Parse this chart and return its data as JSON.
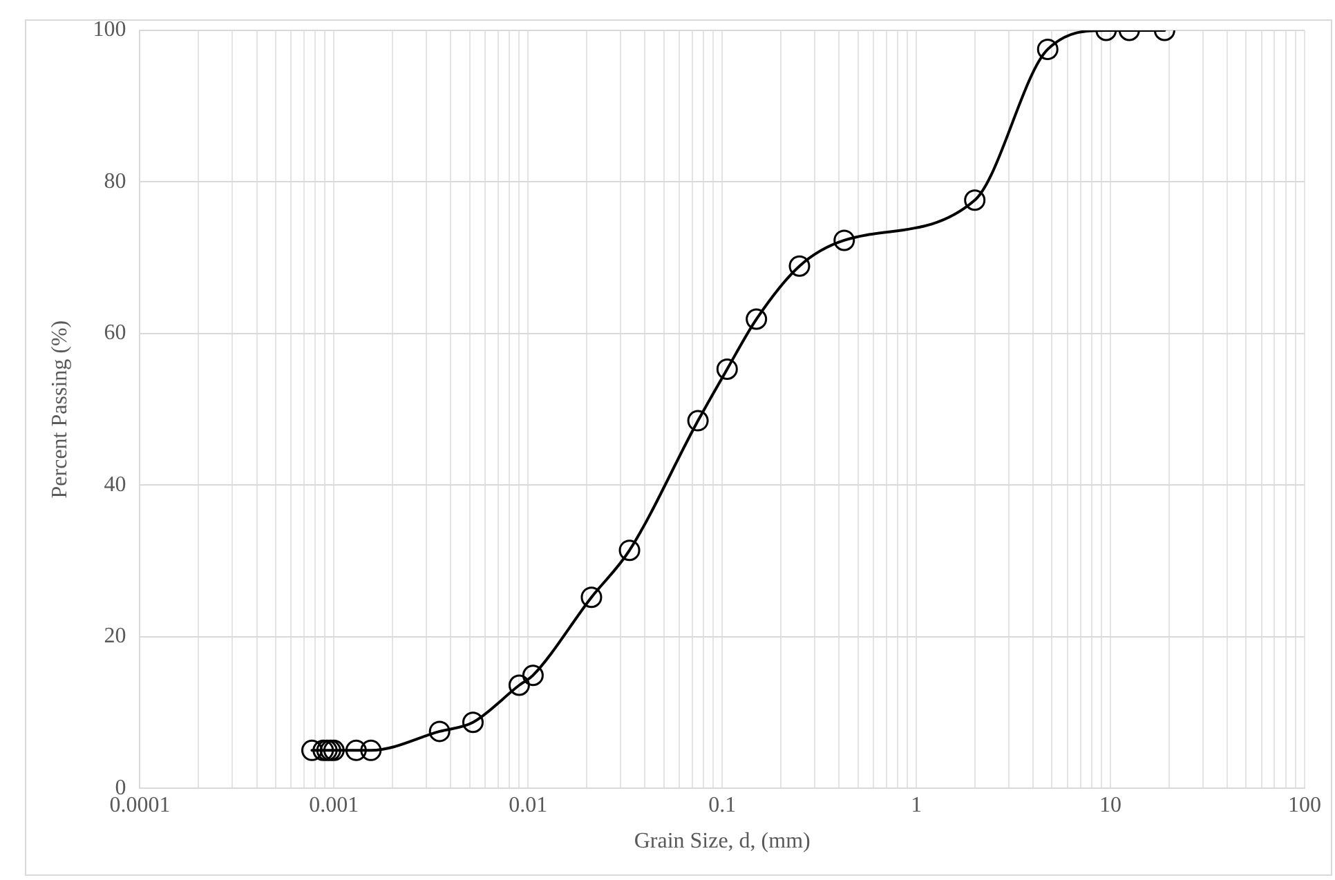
{
  "chart_data": {
    "type": "line",
    "xlabel": "Grain Size, d, (mm)",
    "ylabel": "Percent Passing (%)",
    "log": "x",
    "grid": true,
    "marker": "circle",
    "line_style": "solid",
    "legend": false,
    "xlim": [
      0.0001,
      100
    ],
    "ylim": [
      0,
      100
    ],
    "yticks": [
      0,
      20,
      40,
      60,
      80,
      100
    ],
    "xticks": [
      0.0001,
      {
        "value": 0.0002,
        "label": null
      },
      {
        "value": 0.0003,
        "label": null
      },
      {
        "value": 0.0004,
        "label": null
      },
      {
        "value": 0.0005,
        "label": null
      },
      {
        "value": 0.0006,
        "label": null
      },
      {
        "value": 0.0007,
        "label": null
      },
      {
        "value": 0.0008,
        "label": null
      },
      {
        "value": 0.0009,
        "label": null
      },
      0.001,
      {
        "value": 0.002,
        "label": null
      },
      {
        "value": 0.003,
        "label": null
      },
      {
        "value": 0.004,
        "label": null
      },
      {
        "value": 0.005,
        "label": null
      },
      {
        "value": 0.006,
        "label": null
      },
      {
        "value": 0.007,
        "label": null
      },
      {
        "value": 0.008,
        "label": null
      },
      {
        "value": 0.009,
        "label": null
      },
      0.01,
      {
        "value": 0.02,
        "label": null
      },
      {
        "value": 0.03,
        "label": null
      },
      {
        "value": 0.04,
        "label": null
      },
      {
        "value": 0.05,
        "label": null
      },
      {
        "value": 0.06,
        "label": null
      },
      {
        "value": 0.07,
        "label": null
      },
      {
        "value": 0.08,
        "label": null
      },
      {
        "value": 0.09,
        "label": null
      },
      0.1,
      {
        "value": 0.2,
        "label": null
      },
      {
        "value": 0.3,
        "label": null
      },
      {
        "value": 0.4,
        "label": null
      },
      {
        "value": 0.5,
        "label": null
      },
      {
        "value": 0.6,
        "label": null
      },
      {
        "value": 0.7,
        "label": null
      },
      {
        "value": 0.8,
        "label": null
      },
      {
        "value": 0.9,
        "label": null
      },
      1,
      {
        "value": 2,
        "label": null
      },
      {
        "value": 3,
        "label": null
      },
      {
        "value": 4,
        "label": null
      },
      {
        "value": 5,
        "label": null
      },
      {
        "value": 6,
        "label": null
      },
      {
        "value": 7,
        "label": null
      },
      {
        "value": 8,
        "label": null
      },
      {
        "value": 9,
        "label": null
      },
      10,
      {
        "value": 20,
        "label": null
      },
      {
        "value": 30,
        "label": null
      },
      {
        "value": 40,
        "label": null
      },
      {
        "value": 50,
        "label": null
      },
      {
        "value": 60,
        "label": null
      },
      {
        "value": 70,
        "label": null
      },
      {
        "value": 80,
        "label": null
      },
      {
        "value": 90,
        "label": null
      },
      100
    ],
    "series": [
      {
        "color": "#000000",
        "x": [
          0.00077,
          0.00088,
          0.00092,
          0.00096,
          0.001,
          0.0013,
          0.00155,
          0.0035,
          0.0052,
          0.009,
          0.0106,
          0.0212,
          0.0333,
          0.075,
          0.106,
          0.15,
          0.25,
          0.425,
          2.0,
          4.75,
          9.5,
          12.5,
          19
        ],
        "values": [
          5,
          5,
          5,
          5,
          5,
          5,
          5,
          7.5,
          8.7,
          13.6,
          14.9,
          25.2,
          31.4,
          48.5,
          55.3,
          61.9,
          68.9,
          72.3,
          77.6,
          97.5,
          100,
          100,
          100
        ]
      }
    ]
  }
}
